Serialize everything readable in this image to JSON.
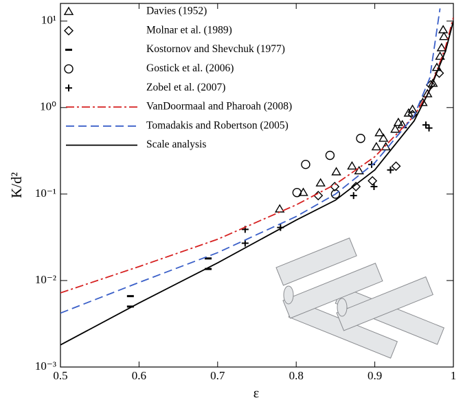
{
  "chart_data": {
    "type": "scatter-line",
    "x_label": "ε",
    "y_label": "K/d²",
    "xlim": [
      0.5,
      1.0
    ],
    "xticks": [
      0.5,
      0.6,
      0.7,
      0.8,
      0.9,
      1
    ],
    "ylim": [
      0.001,
      16
    ],
    "log_y": true,
    "yticks": [
      {
        "value": 0.001,
        "label": "10⁻³"
      },
      {
        "value": 0.01,
        "label": "10⁻²"
      },
      {
        "value": 0.1,
        "label": "10⁻¹"
      },
      {
        "value": 1,
        "label": "10⁰"
      },
      {
        "value": 10,
        "label": "10¹"
      }
    ],
    "legend": "upper left",
    "series": [
      {
        "name": "Davies (1952)",
        "kind": "scatter",
        "marker": "triangle",
        "color": "#000000",
        "x": [
          0.779,
          0.809,
          0.831,
          0.851,
          0.871,
          0.88,
          0.902,
          0.906,
          0.911,
          0.914,
          0.926,
          0.93,
          0.935,
          0.943,
          0.948,
          0.961,
          0.967,
          0.974,
          0.979,
          0.983,
          0.985,
          0.988,
          0.987
        ],
        "values": [
          0.067,
          0.104,
          0.134,
          0.18,
          0.21,
          0.185,
          0.35,
          0.51,
          0.44,
          0.35,
          0.56,
          0.67,
          0.63,
          0.86,
          0.95,
          1.14,
          1.44,
          1.9,
          2.9,
          3.9,
          4.9,
          6.6,
          7.9
        ]
      },
      {
        "name": "Molnar et al. (1989)",
        "kind": "scatter",
        "marker": "diamond",
        "color": "#000000",
        "x": [
          0.828,
          0.849,
          0.876,
          0.897,
          0.927,
          0.948,
          0.971,
          0.982
        ],
        "values": [
          0.096,
          0.122,
          0.122,
          0.142,
          0.21,
          0.83,
          1.83,
          2.5
        ]
      },
      {
        "name": "Kostornov and Shevchuk (1977)",
        "kind": "scatter",
        "marker": "dash",
        "color": "#000000",
        "x": [
          0.589,
          0.589,
          0.688,
          0.688
        ],
        "values": [
          0.0066,
          0.005,
          0.018,
          0.0136
        ]
      },
      {
        "name": "Gostick et al. (2006)",
        "kind": "scatter",
        "marker": "circle",
        "color": "#000000",
        "x": [
          0.801,
          0.812,
          0.843,
          0.85,
          0.882
        ],
        "values": [
          0.104,
          0.22,
          0.28,
          0.1,
          0.44
        ]
      },
      {
        "name": "Zobel et al. (2007)",
        "kind": "scatter",
        "marker": "plus",
        "color": "#000000",
        "x": [
          0.735,
          0.735,
          0.78,
          0.873,
          0.896,
          0.899,
          0.92,
          0.965,
          0.969
        ],
        "values": [
          0.039,
          0.027,
          0.041,
          0.096,
          0.22,
          0.122,
          0.19,
          0.63,
          0.58
        ]
      },
      {
        "name": "VanDoormaal and Pharoah (2008)",
        "kind": "line",
        "dash": "dashdot",
        "color": "#d62020",
        "x": [
          0.5,
          0.6,
          0.7,
          0.8,
          0.85,
          0.9,
          0.95,
          0.97,
          0.99,
          1.0
        ],
        "values": [
          0.0072,
          0.0145,
          0.03,
          0.075,
          0.13,
          0.27,
          0.8,
          1.6,
          5,
          11
        ]
      },
      {
        "name": "Tomadakis and Robertson (2005)",
        "kind": "line",
        "dash": "dash",
        "color": "#3a5fc8",
        "x": [
          0.5,
          0.6,
          0.7,
          0.8,
          0.85,
          0.9,
          0.95,
          0.97,
          0.983
        ],
        "values": [
          0.0042,
          0.0095,
          0.021,
          0.055,
          0.1,
          0.23,
          0.8,
          2.2,
          14
        ]
      },
      {
        "name": "Scale analysis",
        "kind": "line",
        "dash": "solid",
        "color": "#000000",
        "x": [
          0.5,
          0.6,
          0.7,
          0.8,
          0.85,
          0.9,
          0.95,
          0.97,
          0.99,
          1.0
        ],
        "values": [
          0.0018,
          0.0055,
          0.016,
          0.05,
          0.085,
          0.19,
          0.7,
          1.6,
          4.5,
          10
        ]
      }
    ]
  }
}
